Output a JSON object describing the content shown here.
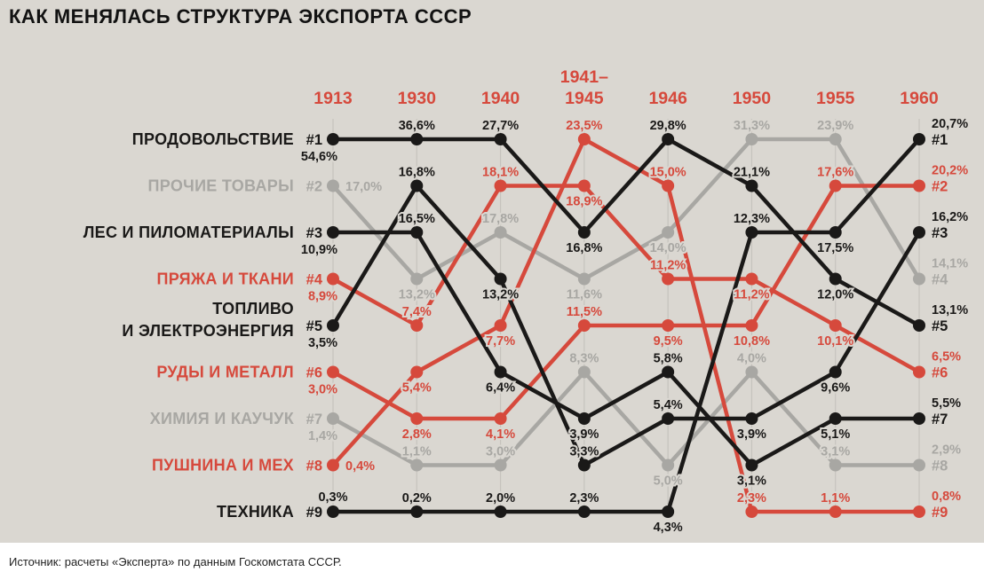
{
  "title": "КАК МЕНЯЛАСЬ СТРУКТУРА ЭКСПОРТА СССР",
  "source": "Источник: расчеты «Эксперта» по данным Госкомстата СССР.",
  "colors": {
    "background": "#dad7d1",
    "footer_background": "#ffffff",
    "title_text": "#121212",
    "source_text": "#222222",
    "black": "#1a1918",
    "red": "#d6493c",
    "gray": "#a8a7a3",
    "guide": "#c6c3bd"
  },
  "chart_data": {
    "type": "line",
    "subtype": "bump-rank-chart",
    "title": "КАК МЕНЯЛАСЬ СТРУКТУРА ЭКСПОРТА СССР",
    "unit": "%",
    "x_labels": [
      "1913",
      "1930",
      "1940",
      "1941–1945",
      "1946",
      "1950",
      "1955",
      "1960"
    ],
    "rank_axis": [
      1,
      2,
      3,
      4,
      5,
      6,
      7,
      8,
      9
    ],
    "series": [
      {
        "name": "ПРОДОВОЛЬСТВИЕ",
        "name_lines": [
          "ПРОДОВОЛЬСТВИЕ"
        ],
        "color": "black",
        "ranks": [
          1,
          1,
          1,
          3,
          1,
          2,
          4,
          5
        ],
        "values": [
          54.6,
          36.6,
          27.7,
          16.8,
          29.8,
          21.1,
          12.0,
          13.1
        ]
      },
      {
        "name": "ПРОЧИЕ ТОВАРЫ",
        "name_lines": [
          "ПРОЧИЕ ТОВАРЫ"
        ],
        "color": "gray",
        "ranks": [
          2,
          4,
          3,
          4,
          3,
          1,
          1,
          4
        ],
        "values": [
          17.0,
          13.2,
          17.8,
          11.6,
          14.0,
          31.3,
          23.9,
          14.1
        ]
      },
      {
        "name": "ЛЕС И ПИЛОМАТЕРИАЛЫ",
        "name_lines": [
          "ЛЕС И ПИЛОМАТЕРИАЛЫ"
        ],
        "color": "black",
        "ranks": [
          3,
          3,
          6,
          7,
          6,
          8,
          7,
          7
        ],
        "values": [
          10.9,
          16.5,
          6.4,
          3.9,
          5.8,
          3.1,
          5.1,
          5.5
        ]
      },
      {
        "name": "ПРЯЖА И ТКАНИ",
        "name_lines": [
          "ПРЯЖА И ТКАНИ"
        ],
        "color": "red",
        "ranks": [
          4,
          5,
          2,
          2,
          4,
          4,
          5,
          6
        ],
        "values": [
          8.9,
          7.4,
          18.1,
          18.9,
          11.2,
          11.2,
          10.1,
          6.5
        ]
      },
      {
        "name": "ТОПЛИВО И ЭЛЕКТРОЭНЕРГИЯ",
        "name_lines": [
          "ТОПЛИВО",
          "И ЭЛЕКТРОЭНЕРГИЯ"
        ],
        "color": "black",
        "ranks": [
          5,
          2,
          4,
          8,
          7,
          7,
          6,
          3
        ],
        "values": [
          3.5,
          16.8,
          13.2,
          3.3,
          5.4,
          3.9,
          9.6,
          16.2
        ]
      },
      {
        "name": "РУДЫ И МЕТАЛЛ",
        "name_lines": [
          "РУДЫ И МЕТАЛЛ"
        ],
        "color": "red",
        "ranks": [
          6,
          7,
          7,
          5,
          5,
          5,
          2,
          2
        ],
        "values": [
          3.0,
          2.8,
          4.1,
          11.5,
          9.5,
          10.8,
          17.6,
          20.2
        ]
      },
      {
        "name": "ХИМИЯ И КАУЧУК",
        "name_lines": [
          "ХИМИЯ И КАУЧУК"
        ],
        "color": "gray",
        "ranks": [
          7,
          8,
          8,
          6,
          8,
          6,
          8,
          8
        ],
        "values": [
          1.4,
          1.1,
          3.0,
          8.3,
          5.0,
          4.0,
          3.1,
          2.9
        ]
      },
      {
        "name": "ПУШНИНА И МЕХ",
        "name_lines": [
          "ПУШНИНА И МЕХ"
        ],
        "color": "red",
        "ranks": [
          8,
          6,
          5,
          1,
          2,
          9,
          9,
          9
        ],
        "values": [
          0.4,
          5.4,
          7.7,
          23.5,
          15.0,
          2.3,
          1.1,
          0.8
        ]
      },
      {
        "name": "ТЕХНИКА",
        "name_lines": [
          "ТЕХНИКА"
        ],
        "color": "black",
        "ranks": [
          9,
          9,
          9,
          9,
          9,
          3,
          3,
          1
        ],
        "values": [
          0.3,
          0.2,
          2.0,
          2.3,
          4.3,
          12.3,
          17.5,
          20.7
        ]
      }
    ]
  }
}
